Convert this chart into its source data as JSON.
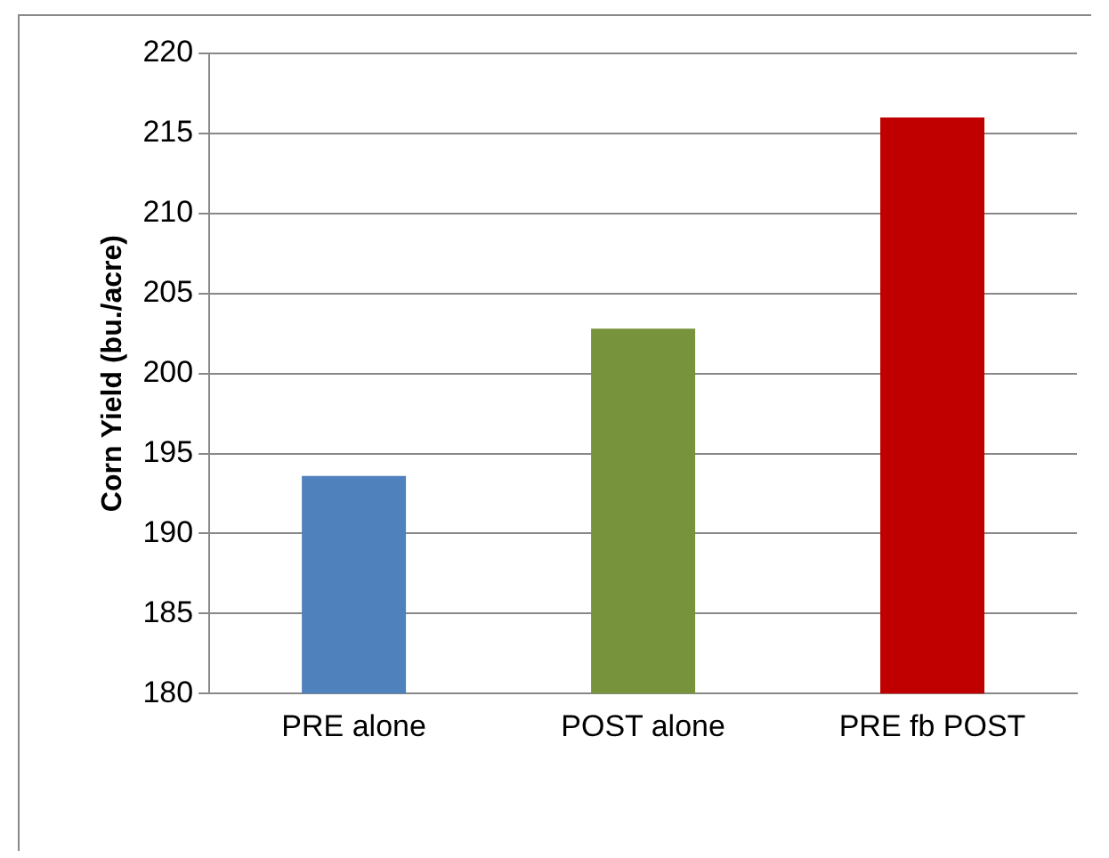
{
  "chart_data": {
    "type": "bar",
    "ylabel": "Corn Yield (bu./acre)",
    "categories": [
      "PRE alone",
      "POST alone",
      "PRE fb POST"
    ],
    "values": [
      193.6,
      202.8,
      216
    ],
    "colors": [
      "#4f81bd",
      "#77933c",
      "#c00000"
    ],
    "ylim": [
      180,
      220
    ],
    "yticks": [
      180,
      185,
      190,
      195,
      200,
      205,
      210,
      215,
      220
    ],
    "grid": "y",
    "legend": false
  }
}
